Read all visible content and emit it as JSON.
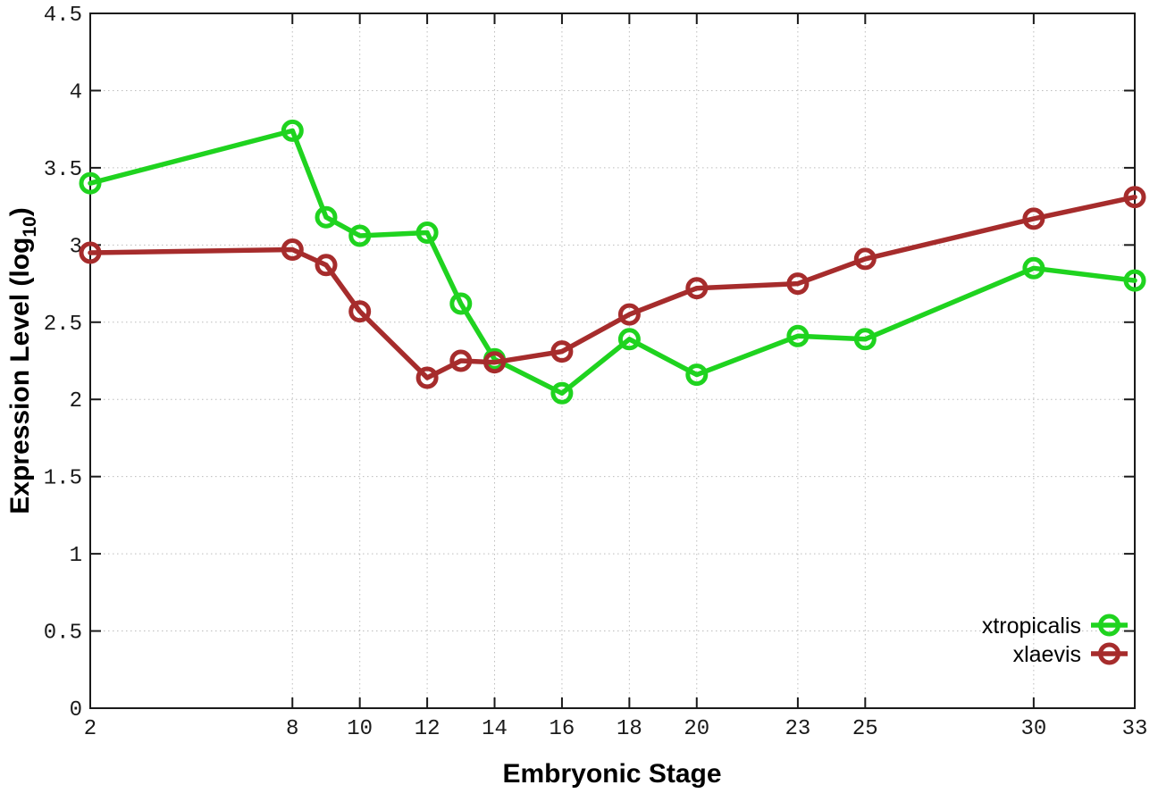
{
  "chart_data": {
    "type": "line",
    "title": "",
    "xlabel": "Embryonic Stage",
    "ylabel": "Expression Level (log10)",
    "ylabel_parts": {
      "main": "Expression Level (log",
      "sub": "10",
      "end": ")"
    },
    "x": [
      2,
      8,
      9,
      10,
      12,
      13,
      14,
      16,
      18,
      20,
      23,
      25,
      30,
      33
    ],
    "x_ticks": [
      2,
      8,
      10,
      12,
      14,
      16,
      18,
      20,
      23,
      25,
      30,
      33
    ],
    "x_tick_labels": [
      "2",
      "8",
      "10",
      "12",
      "14",
      "16",
      "18",
      "20",
      "23",
      "25",
      "30",
      "33"
    ],
    "y_ticks": [
      0,
      0.5,
      1,
      1.5,
      2,
      2.5,
      3,
      3.5,
      4,
      4.5
    ],
    "y_tick_labels": [
      "0",
      "0.5",
      "1",
      "1.5",
      "2",
      "2.5",
      "3",
      "3.5",
      "4",
      "4.5"
    ],
    "xlim": [
      2,
      33
    ],
    "ylim": [
      0,
      4.5
    ],
    "grid": true,
    "legend_position": "bottom-right",
    "series": [
      {
        "name": "xtropicalis",
        "color": "#1fd31f",
        "values": [
          3.4,
          3.74,
          3.18,
          3.06,
          3.08,
          2.62,
          2.26,
          2.04,
          2.39,
          2.16,
          2.41,
          2.39,
          2.85,
          2.77
        ]
      },
      {
        "name": "xlaevis",
        "color": "#a62c2c",
        "values": [
          2.95,
          2.97,
          2.87,
          2.57,
          2.14,
          2.25,
          2.24,
          2.31,
          2.55,
          2.72,
          2.75,
          2.91,
          3.17,
          3.31
        ]
      }
    ],
    "colors": {
      "grid": "#bcbcbc",
      "axis": "#1a1a1a",
      "text": "#000000"
    }
  }
}
